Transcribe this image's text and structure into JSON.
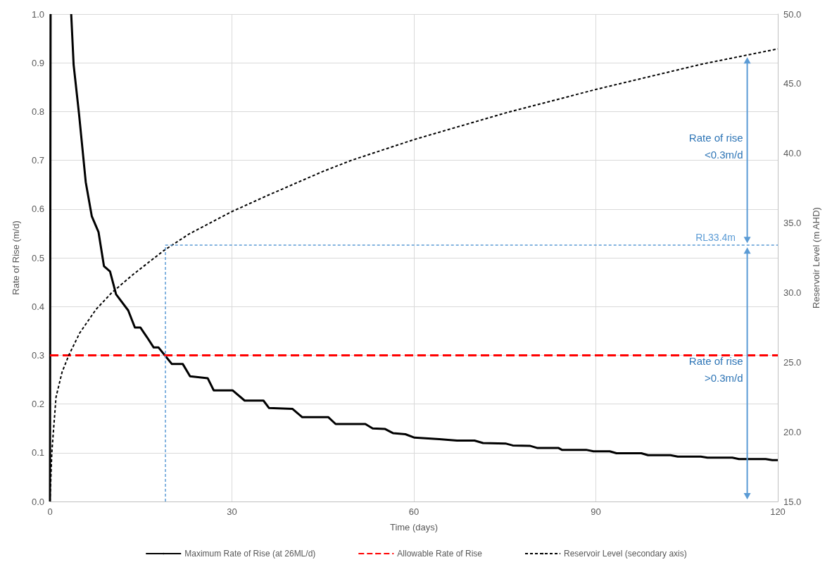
{
  "chart_data": {
    "type": "line",
    "xlabel": "Time (days)",
    "ylabel": "Rate of Rise (m/d)",
    "y2label": "Reservoir Level (m AHD)",
    "xlim": [
      0,
      120
    ],
    "xticks": [
      0,
      30,
      60,
      90,
      120
    ],
    "ylim": [
      0,
      1
    ],
    "yticks": [
      {
        "value": 0,
        "label": "0.0"
      },
      {
        "value": 0.1,
        "label": "0.1"
      },
      {
        "value": 0.2,
        "label": "0.2"
      },
      {
        "value": 0.3,
        "label": "0.3"
      },
      {
        "value": 0.4,
        "label": "0.4"
      },
      {
        "value": 0.5,
        "label": "0.5"
      },
      {
        "value": 0.6,
        "label": "0.6"
      },
      {
        "value": 0.7,
        "label": "0.7"
      },
      {
        "value": 0.8,
        "label": "0.8"
      },
      {
        "value": 0.9,
        "label": "0.9"
      },
      {
        "value": 1,
        "label": "1.0"
      }
    ],
    "y2lim": [
      15,
      50
    ],
    "y2ticks": [
      {
        "value": 15,
        "label": "15.0"
      },
      {
        "value": 20,
        "label": "20.0"
      },
      {
        "value": 25,
        "label": "25.0"
      },
      {
        "value": 30,
        "label": "30.0"
      },
      {
        "value": 35,
        "label": "35.0"
      },
      {
        "value": 40,
        "label": "40.0"
      },
      {
        "value": 45,
        "label": "45.0"
      },
      {
        "value": 50,
        "label": "50.0"
      }
    ],
    "grid": true,
    "legend": "bottom",
    "marker": "none",
    "series": [
      {
        "name": "Maximum Rate of Rise (at 26ML/d)",
        "color": "#000000",
        "line_style": "solid",
        "x": [
          0,
          0.1,
          1.8,
          3.5,
          3.9,
          4.8,
          5.9,
          6.9,
          8.0,
          8.9,
          9.9,
          10.9,
          12.9,
          14.0,
          14.9,
          16.0,
          17.1,
          17.9,
          20.1,
          21.9,
          23.1,
          26.0,
          27.0,
          30.1,
          32.1,
          35.2,
          36.1,
          40.0,
          41.6,
          45.9,
          47.1,
          52.0,
          53.2,
          55.2,
          56.6,
          58.6,
          60.1,
          64.2,
          67.1,
          70.0,
          71.4,
          75.1,
          76.3,
          79.2,
          80.3,
          83.8,
          84.4,
          88.4,
          89.6,
          92.3,
          93.4,
          97.5,
          98.6,
          102.3,
          103.5,
          107.3,
          108.4,
          112.5,
          113.6,
          118.0,
          119.1,
          120
        ],
        "values": [
          0,
          1.0,
          null,
          1.0,
          0.896,
          0.794,
          0.655,
          0.585,
          0.553,
          0.483,
          0.472,
          0.425,
          0.392,
          0.357,
          0.357,
          0.337,
          0.316,
          0.316,
          0.282,
          0.282,
          0.257,
          0.253,
          0.228,
          0.228,
          0.207,
          0.207,
          0.192,
          0.19,
          0.173,
          0.173,
          0.159,
          0.159,
          0.15,
          0.149,
          0.14,
          0.138,
          0.131,
          0.128,
          0.125,
          0.125,
          0.12,
          0.119,
          0.115,
          0.114,
          0.11,
          0.11,
          0.106,
          0.106,
          0.103,
          0.103,
          0.099,
          0.099,
          0.095,
          0.095,
          0.092,
          0.092,
          0.09,
          0.09,
          0.087,
          0.087,
          0.085,
          0.085
        ]
      },
      {
        "name": "Allowable Rate of Rise",
        "color": "#ff0000",
        "line_style": "dashed",
        "x": [
          0,
          120
        ],
        "values": [
          0.3,
          0.3
        ]
      },
      {
        "name": "Reservoir Level (secondary axis)",
        "color": "#000000",
        "line_style": "dotted",
        "axis": "y2",
        "x": [
          0,
          0.3,
          1.0,
          2.0,
          3.1,
          4.9,
          7.6,
          10.2,
          13.7,
          18.7,
          22.9,
          29.9,
          36.0,
          45.0,
          49.7,
          60.1,
          75.1,
          90.1,
          107.4,
          120
        ],
        "values": [
          15.0,
          18.5,
          22.5,
          24.3,
          25.5,
          27.1,
          28.8,
          30.0,
          31.3,
          33.0,
          34.2,
          35.8,
          37.0,
          38.7,
          39.5,
          41.0,
          42.9,
          44.6,
          46.4,
          47.5
        ]
      }
    ],
    "ref_lines": [
      {
        "axis": "x",
        "value": 19,
        "color": "#5b9bd5",
        "line_style": "dotted"
      },
      {
        "axis": "y2",
        "value": 33.4,
        "label": "RL33.4m",
        "color": "#5b9bd5",
        "line_style": "dotted"
      }
    ],
    "annotations": [
      "Rate of rise\n<0.3m/d",
      "Rate of rise\n>0.3m/d"
    ]
  }
}
